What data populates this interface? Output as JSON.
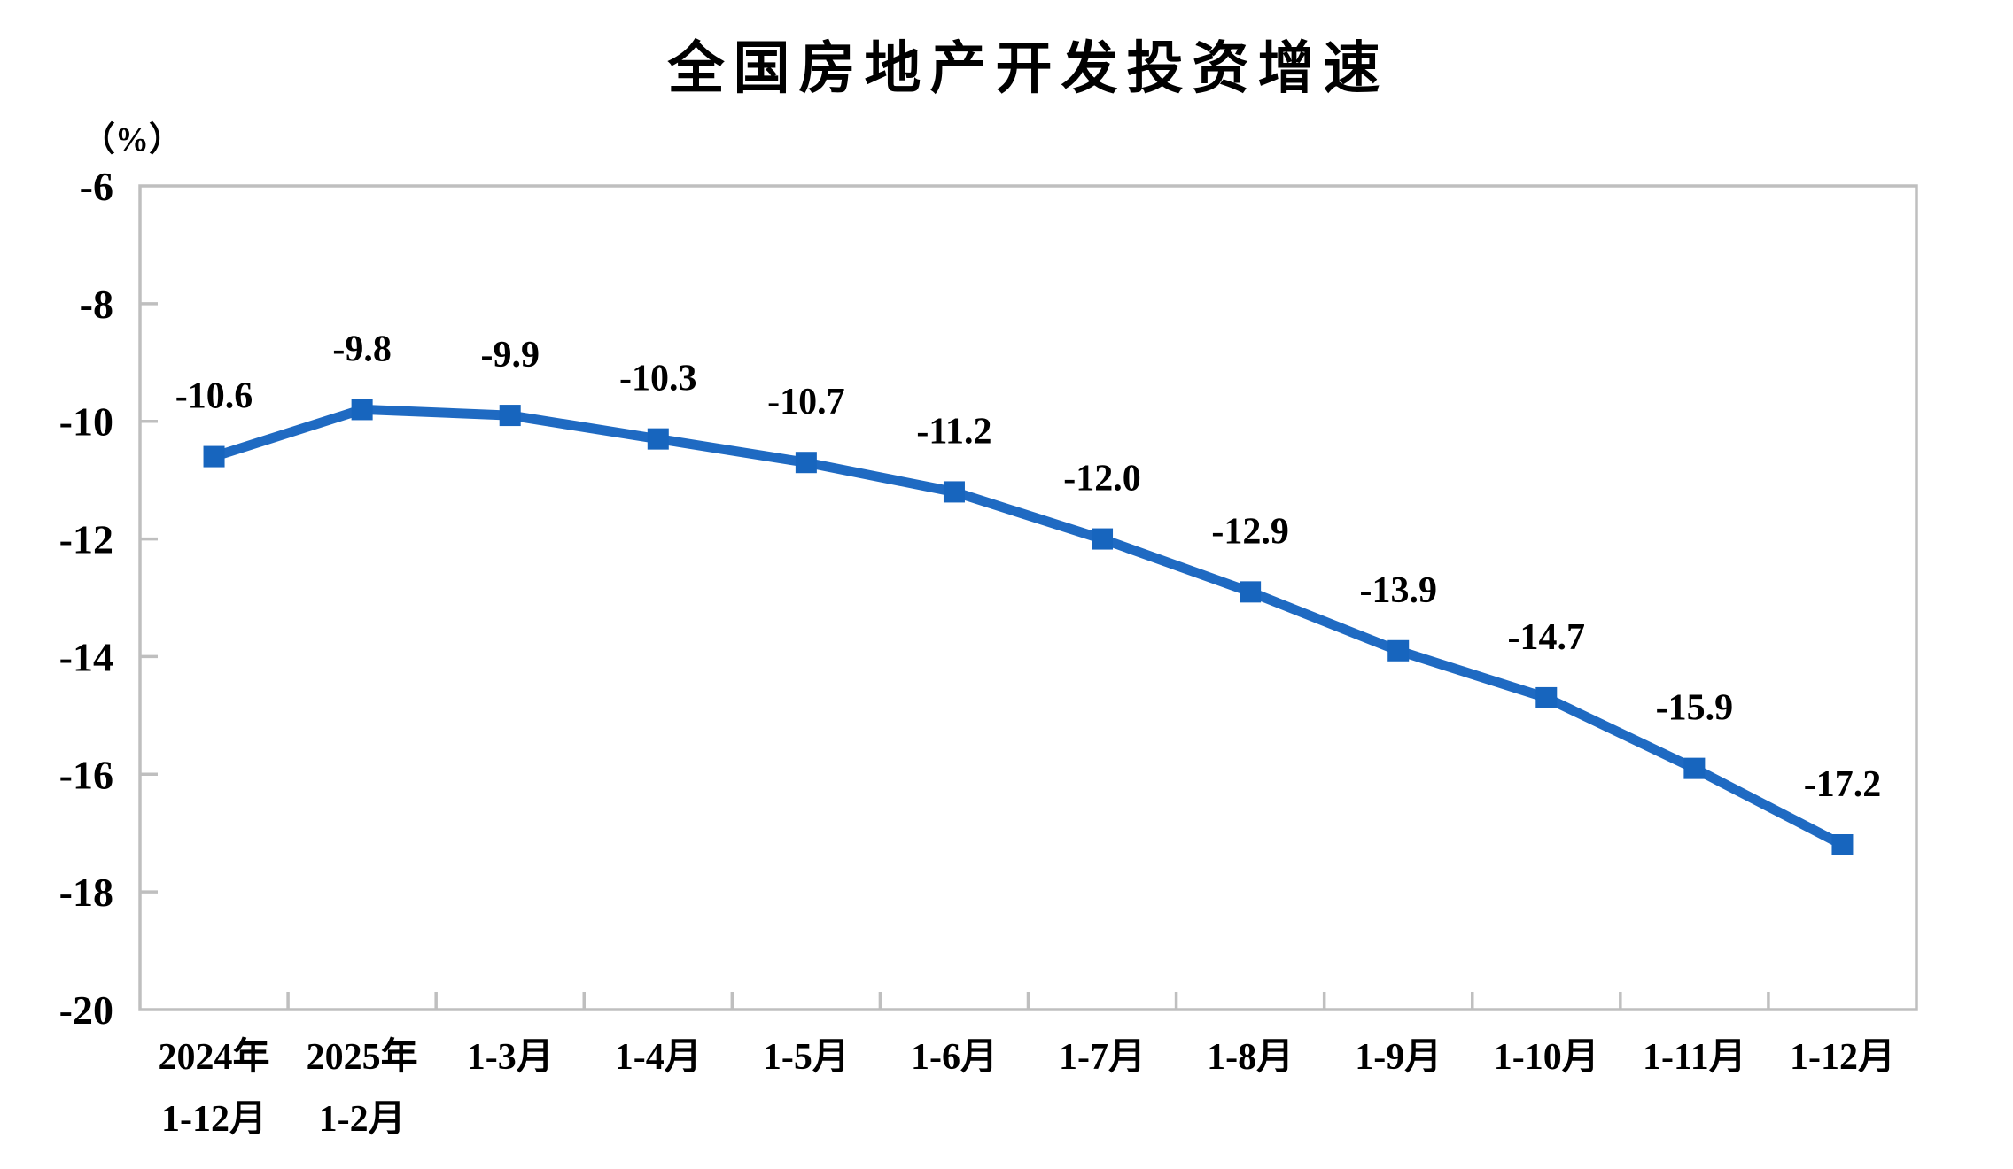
{
  "chart_data": {
    "type": "line",
    "title": "全国房地产开发投资增速",
    "ylabel": "（%）",
    "categories": [
      [
        "2024年",
        "1-12月"
      ],
      [
        "2025年",
        "1-2月"
      ],
      [
        "1-3月"
      ],
      [
        "1-4月"
      ],
      [
        "1-5月"
      ],
      [
        "1-6月"
      ],
      [
        "1-7月"
      ],
      [
        "1-8月"
      ],
      [
        "1-9月"
      ],
      [
        "1-10月"
      ],
      [
        "1-11月"
      ],
      [
        "1-12月"
      ]
    ],
    "values": [
      -10.6,
      -9.8,
      -9.9,
      -10.3,
      -10.7,
      -11.2,
      -12.0,
      -12.9,
      -13.9,
      -14.7,
      -15.9,
      -17.2
    ],
    "data_labels": [
      "-10.6",
      "-9.8",
      "-9.9",
      "-10.3",
      "-10.7",
      "-11.2",
      "-12.0",
      "-12.9",
      "-13.9",
      "-14.7",
      "-15.9",
      "-17.2"
    ],
    "ylim": [
      -20,
      -6
    ],
    "yticks": [
      -6,
      -8,
      -10,
      -12,
      -14,
      -16,
      -18,
      -20
    ],
    "ytick_labels": [
      "-6",
      "-8",
      "-10",
      "-12",
      "-14",
      "-16",
      "-18",
      "-20"
    ],
    "grid": false,
    "legend": "none",
    "marker": "square",
    "colors": {
      "line": "#1F6AC2",
      "marker": "#1765BE",
      "frame": "#BFBFBF",
      "text": "#000000",
      "background": "#FFFFFF"
    }
  }
}
